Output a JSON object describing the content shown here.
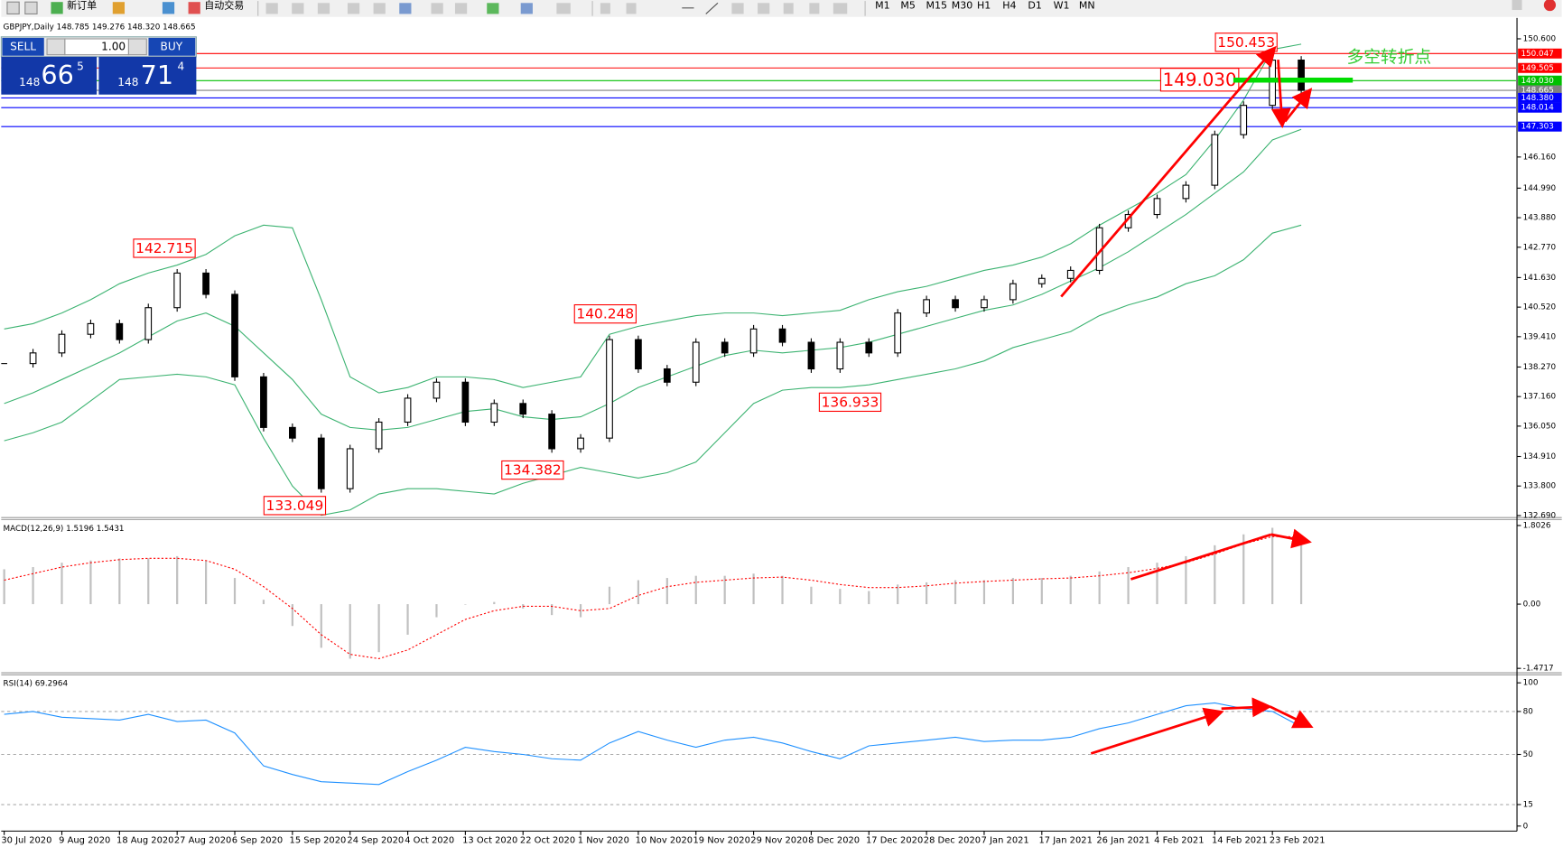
{
  "toolbar": {
    "new_order": "新订单",
    "auto_trading": "自动交易",
    "timeframes": [
      "M1",
      "M5",
      "M15",
      "M30",
      "H1",
      "H4",
      "D1",
      "W1",
      "MN"
    ]
  },
  "trade_panel": {
    "sell": "SELL",
    "lots": "1.00",
    "buy": "BUY",
    "bid": {
      "big": "148",
      "pips": "66",
      "frac": "5"
    },
    "ask": {
      "big": "148",
      "pips": "71",
      "frac": "4"
    }
  },
  "chart_data": [
    {
      "type": "candlestick",
      "title": "GBPJPY,Daily 148.785 149.276 148.320 148.665",
      "note": "多空转折点",
      "categories": [
        "30 Jul 2020",
        null,
        "9 Aug 2020",
        null,
        "18 Aug 2020",
        null,
        "27 Aug 2020",
        null,
        "6 Sep 2020",
        null,
        "15 Sep 2020",
        null,
        "24 Sep 2020",
        null,
        "4 Oct 2020",
        null,
        "13 Oct 2020",
        null,
        "22 Oct 2020",
        null,
        "1 Nov 2020",
        null,
        "10 Nov 2020",
        null,
        "19 Nov 2020",
        null,
        "29 Nov 2020",
        null,
        "8 Dec 2020",
        null,
        "17 Dec 2020",
        null,
        "28 Dec 2020",
        null,
        "7 Jan 2021",
        null,
        "17 Jan 2021",
        null,
        "26 Jan 2021",
        null,
        "4 Feb 2021",
        null,
        "14 Feb 2021",
        null,
        "23 Feb 2021",
        null
      ],
      "values": [
        138.4,
        138.8,
        139.5,
        139.9,
        139.3,
        140.5,
        141.8,
        141.0,
        137.9,
        136.0,
        135.6,
        133.7,
        135.2,
        136.2,
        137.1,
        137.7,
        136.2,
        136.9,
        136.5,
        135.2,
        135.6,
        139.3,
        138.2,
        137.7,
        139.2,
        138.8,
        139.7,
        139.2,
        138.2,
        139.2,
        138.8,
        140.3,
        140.8,
        140.5,
        140.8,
        141.4,
        141.6,
        141.9,
        143.5,
        144.0,
        144.6,
        145.1,
        147.0,
        148.1,
        149.8,
        148.665
      ],
      "series": [
        {
          "color": "#3cb371",
          "values": [
            139.7,
            139.9,
            140.3,
            140.8,
            141.4,
            141.8,
            142.1,
            142.5,
            143.2,
            143.6,
            143.5,
            140.8,
            137.9,
            137.3,
            137.5,
            137.9,
            137.9,
            137.8,
            137.5,
            137.7,
            137.9,
            139.5,
            139.8,
            140.0,
            140.2,
            140.3,
            140.3,
            140.2,
            140.3,
            140.4,
            140.8,
            141.1,
            141.3,
            141.6,
            141.9,
            142.1,
            142.4,
            142.9,
            143.6,
            144.2,
            144.8,
            145.5,
            146.8,
            148.3,
            150.2,
            150.4
          ]
        },
        {
          "color": "#3cb371",
          "values": [
            136.9,
            137.3,
            137.8,
            138.3,
            138.8,
            139.4,
            140.0,
            140.3,
            139.8,
            138.8,
            137.8,
            136.5,
            136.0,
            135.9,
            136.0,
            136.3,
            136.6,
            136.7,
            136.4,
            136.3,
            136.4,
            136.9,
            137.5,
            137.9,
            138.3,
            138.7,
            138.9,
            138.8,
            138.9,
            139.0,
            139.2,
            139.5,
            139.8,
            140.1,
            140.4,
            140.6,
            141.0,
            141.5,
            142.0,
            142.6,
            143.3,
            144.0,
            144.8,
            145.6,
            146.8,
            147.2
          ]
        },
        {
          "color": "#3cb371",
          "values": [
            135.5,
            135.8,
            136.2,
            137.0,
            137.8,
            137.9,
            138.0,
            137.9,
            137.6,
            135.6,
            133.8,
            132.7,
            132.9,
            133.5,
            133.7,
            133.7,
            133.6,
            133.5,
            133.9,
            134.2,
            134.5,
            134.3,
            134.1,
            134.3,
            134.7,
            135.8,
            136.9,
            137.4,
            137.5,
            137.5,
            137.6,
            137.8,
            138.0,
            138.2,
            138.5,
            139.0,
            139.3,
            139.6,
            140.2,
            140.6,
            140.9,
            141.4,
            141.7,
            142.3,
            143.3,
            143.6
          ]
        }
      ],
      "ylim": [
        132.615,
        151.385
      ],
      "yticks": [
        {
          "value": 150.6,
          "label": "150.600"
        },
        {
          "value": 146.16,
          "label": "146.160"
        },
        {
          "value": 144.99,
          "label": "144.990"
        },
        {
          "value": 143.88,
          "label": "143.880"
        },
        {
          "value": 142.77,
          "label": "142.770"
        },
        {
          "value": 141.63,
          "label": "141.630"
        },
        {
          "value": 140.52,
          "label": "140.520"
        },
        {
          "value": 139.41,
          "label": "139.410"
        },
        {
          "value": 138.27,
          "label": "138.270"
        },
        {
          "value": 137.16,
          "label": "137.160"
        },
        {
          "value": 136.05,
          "label": "136.050"
        },
        {
          "value": 134.91,
          "label": "134.910"
        },
        {
          "value": 133.8,
          "label": "133.800"
        },
        {
          "value": 132.69,
          "label": "132.690"
        }
      ],
      "levels": [
        {
          "value": 150.047,
          "color": "#ff0000"
        },
        {
          "value": 149.505,
          "color": "#ff0000"
        },
        {
          "value": 149.03,
          "label": "149.030",
          "color": "#00c000"
        },
        {
          "value": 148.665,
          "color": "#808080"
        },
        {
          "value": 148.38,
          "label": "148.380",
          "color": "#0000ff"
        },
        {
          "value": 148.014,
          "color": "#0000ff"
        },
        {
          "value": 147.303,
          "color": "#0000ff"
        }
      ],
      "annotations": [
        142.715,
        140.248,
        136.933,
        134.382,
        133.049,
        150.453,
        {
          "value": 149.03,
          "label": "149.030"
        }
      ]
    },
    {
      "type": "macd",
      "title": "MACD(12,26,9) 1.5196 1.5431",
      "values": [
        0.8,
        0.85,
        0.95,
        1.0,
        1.05,
        1.05,
        1.1,
        1.0,
        0.6,
        0.1,
        -0.5,
        -1.0,
        -1.25,
        -1.1,
        -0.7,
        -0.3,
        0.0,
        0.05,
        -0.1,
        -0.25,
        -0.3,
        0.4,
        0.55,
        0.6,
        0.65,
        0.65,
        0.7,
        0.65,
        0.4,
        0.35,
        0.3,
        0.45,
        0.5,
        0.55,
        0.55,
        0.6,
        0.6,
        0.65,
        0.75,
        0.85,
        0.95,
        1.1,
        1.35,
        1.6,
        1.75,
        1.5196
      ],
      "series": [
        {
          "color": "#ff0000",
          "values": [
            0.55,
            0.7,
            0.85,
            0.95,
            1.02,
            1.05,
            1.05,
            1.0,
            0.8,
            0.4,
            -0.1,
            -0.7,
            -1.15,
            -1.25,
            -1.05,
            -0.7,
            -0.35,
            -0.15,
            -0.05,
            -0.05,
            -0.15,
            -0.1,
            0.2,
            0.4,
            0.5,
            0.55,
            0.6,
            0.62,
            0.55,
            0.45,
            0.38,
            0.38,
            0.42,
            0.48,
            0.52,
            0.55,
            0.58,
            0.6,
            0.65,
            0.72,
            0.82,
            0.95,
            1.15,
            1.38,
            1.55,
            1.5431
          ]
        }
      ],
      "color": "#c0c0c0",
      "ylim": [
        -1.574,
        1.9394
      ],
      "yticks": [
        1.8026,
        {
          "value": 0,
          "label": "0.00"
        },
        -1.4717
      ]
    },
    {
      "type": "line",
      "title": "RSI(14) 69.2964",
      "color": "#1e90ff",
      "values": [
        78,
        80,
        76,
        75,
        74,
        78,
        73,
        74,
        65,
        42,
        36,
        31,
        30,
        29,
        38,
        46,
        55,
        52,
        50,
        47,
        46,
        58,
        66,
        60,
        55,
        60,
        62,
        58,
        52,
        47,
        56,
        58,
        60,
        62,
        59,
        60,
        60,
        62,
        68,
        72,
        78,
        84,
        86,
        82,
        80,
        69.2964
      ],
      "levels": [
        80,
        50,
        15
      ],
      "ylim": [
        -3.5,
        105.6
      ],
      "yticks": [
        100,
        80,
        50,
        15,
        0
      ]
    }
  ]
}
